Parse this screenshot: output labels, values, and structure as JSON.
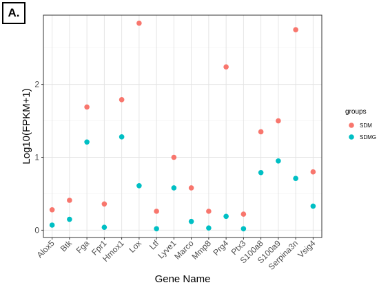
{
  "panel_label": "A.",
  "chart_data": {
    "type": "scatter",
    "xlabel": "Gene Name",
    "ylabel": "Log10(FPKM+1)",
    "categories": [
      "Alox5",
      "Btk",
      "Fga",
      "Fpr1",
      "Hmox1",
      "Lox",
      "Ltf",
      "Lyve1",
      "Marco",
      "Mmp8",
      "Prg4",
      "Ptx3",
      "S100a8",
      "S100a9",
      "Serpina3n",
      "Vsig4"
    ],
    "series": [
      {
        "name": "SDM",
        "color": "#f8766d",
        "values": [
          0.28,
          0.41,
          1.69,
          0.36,
          1.79,
          2.84,
          0.26,
          1.0,
          0.58,
          0.26,
          2.24,
          0.22,
          1.35,
          1.5,
          2.75,
          0.8
        ]
      },
      {
        "name": "SDMG",
        "color": "#00bfc4",
        "values": [
          0.07,
          0.15,
          1.21,
          0.04,
          1.28,
          0.61,
          0.02,
          0.58,
          0.12,
          0.03,
          0.19,
          0.02,
          0.79,
          0.95,
          0.71,
          0.33
        ]
      }
    ],
    "ylim": [
      -0.1,
      2.95
    ],
    "yticks": [
      0,
      1,
      2
    ],
    "grid": true,
    "legend": {
      "title": "groups",
      "position": "right"
    }
  }
}
